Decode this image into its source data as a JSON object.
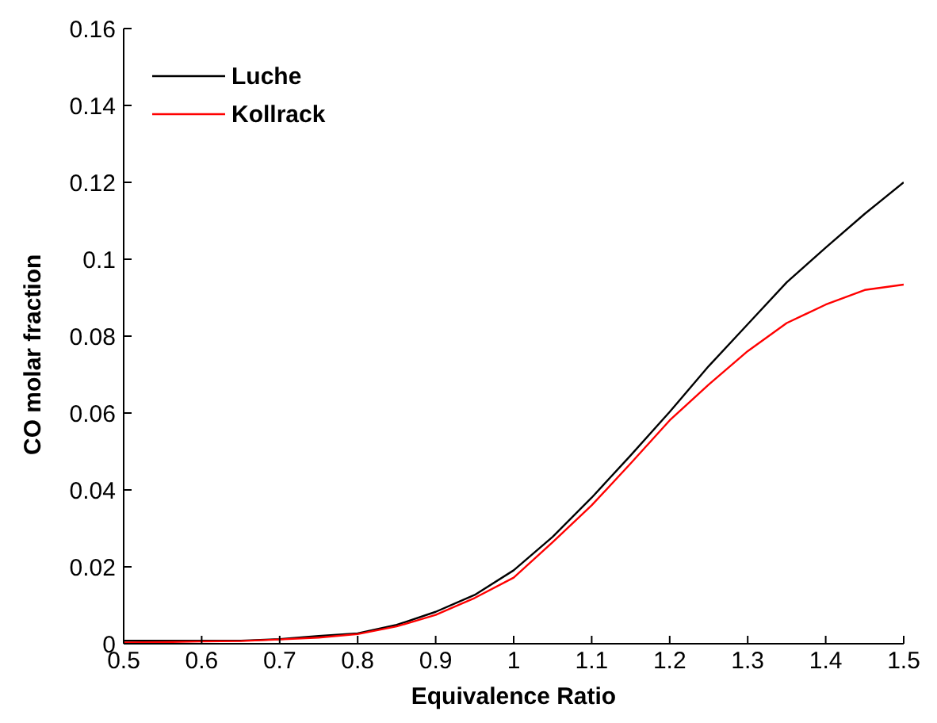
{
  "chart_data": {
    "type": "line",
    "xlabel": "Equivalence Ratio",
    "ylabel": "CO molar fraction",
    "x": [
      0.5,
      0.55,
      0.6,
      0.65,
      0.7,
      0.75,
      0.8,
      0.85,
      0.9,
      0.95,
      1.0,
      1.05,
      1.1,
      1.15,
      1.2,
      1.25,
      1.3,
      1.35,
      1.4,
      1.45,
      1.5
    ],
    "series": [
      {
        "name": "Luche",
        "color": "#000000",
        "values": [
          0.0008,
          0.0008,
          0.0008,
          0.0008,
          0.0012,
          0.002,
          0.0027,
          0.0049,
          0.0083,
          0.0127,
          0.0191,
          0.0278,
          0.038,
          0.049,
          0.0603,
          0.0722,
          0.0831,
          0.094,
          0.103,
          0.1118,
          0.12
        ]
      },
      {
        "name": "Kollrack",
        "color": "#ff0000",
        "values": [
          0.0003,
          0.0004,
          0.0006,
          0.0007,
          0.0011,
          0.0016,
          0.0025,
          0.0045,
          0.0075,
          0.0119,
          0.0172,
          0.0264,
          0.036,
          0.0469,
          0.0581,
          0.0674,
          0.0761,
          0.0834,
          0.0882,
          0.092,
          0.0934
        ]
      }
    ],
    "xlim": [
      0.5,
      1.5
    ],
    "xticks": [
      0.5,
      0.6,
      0.7,
      0.8,
      0.9,
      1,
      1.1,
      1.2,
      1.3,
      1.4,
      1.5
    ],
    "ylim": [
      0,
      0.16
    ],
    "yticks": [
      0,
      0.02,
      0.04,
      0.06,
      0.08,
      0.1,
      0.12,
      0.14,
      0.16
    ],
    "legend": "top left",
    "grid": false,
    "marker": "none",
    "line_style": "solid"
  }
}
